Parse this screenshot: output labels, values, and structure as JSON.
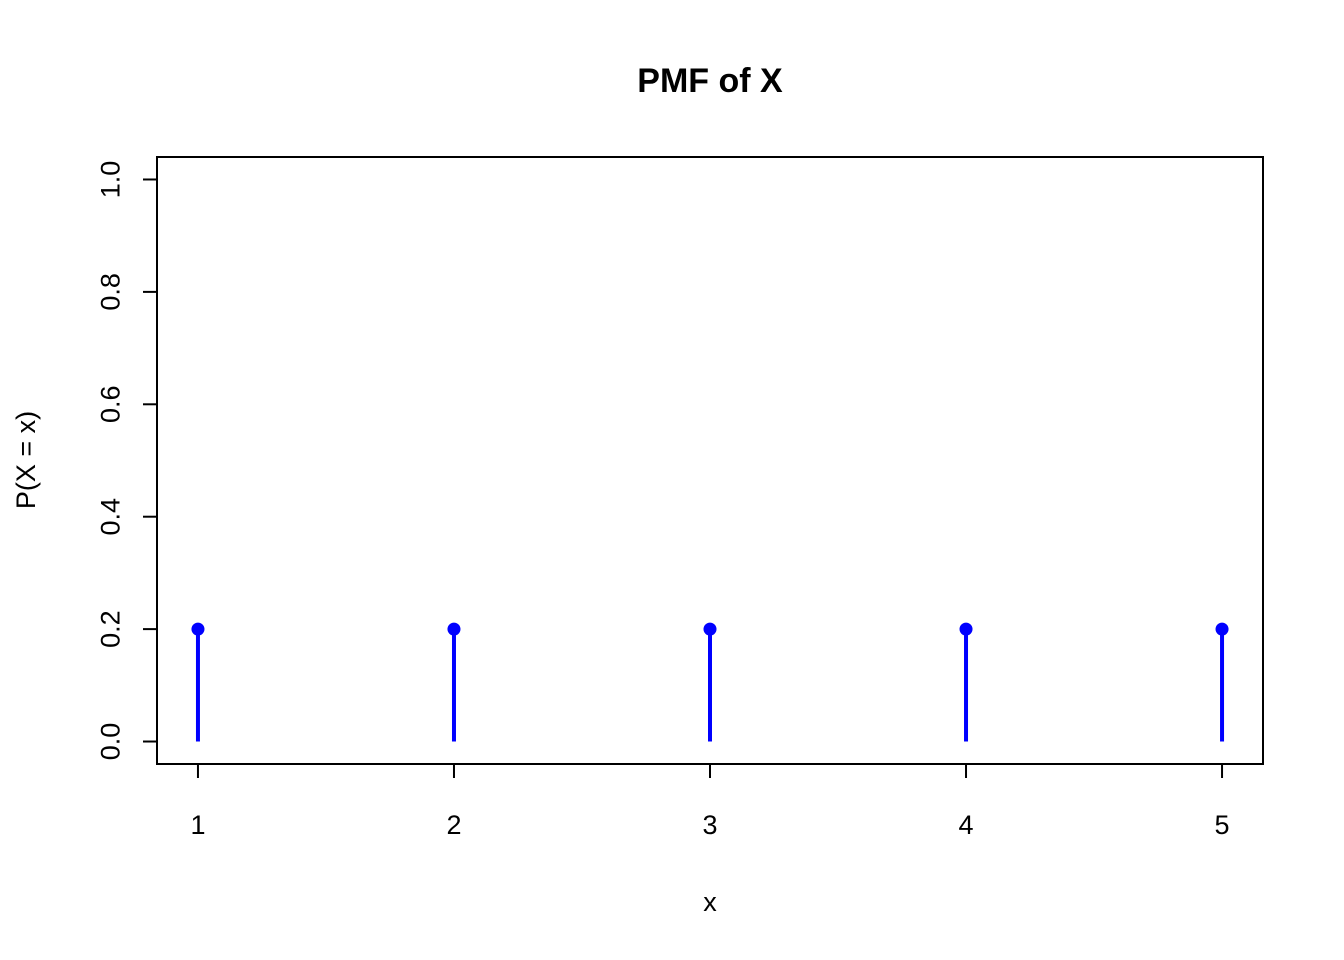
{
  "chart_data": {
    "type": "scatter",
    "style": "stem",
    "title": "PMF of X",
    "xlabel": "x",
    "ylabel": "P(X = x)",
    "x": [
      1,
      2,
      3,
      4,
      5
    ],
    "y": [
      0.2,
      0.2,
      0.2,
      0.2,
      0.2
    ],
    "xlim": [
      0.84,
      5.16
    ],
    "ylim": [
      -0.04,
      1.04
    ],
    "x_ticks": [
      1,
      2,
      3,
      4,
      5
    ],
    "y_ticks": [
      0,
      0.2,
      0.4,
      0.6,
      0.8,
      1.0
    ],
    "x_tick_labels": [
      "1",
      "2",
      "3",
      "4",
      "5"
    ],
    "y_tick_labels": [
      "0.0",
      "0.2",
      "0.4",
      "0.6",
      "0.8",
      "1.0"
    ],
    "grid": false,
    "legend": "none",
    "box": true,
    "colors": {
      "series": "#0000ff",
      "axis": "#000000"
    }
  }
}
